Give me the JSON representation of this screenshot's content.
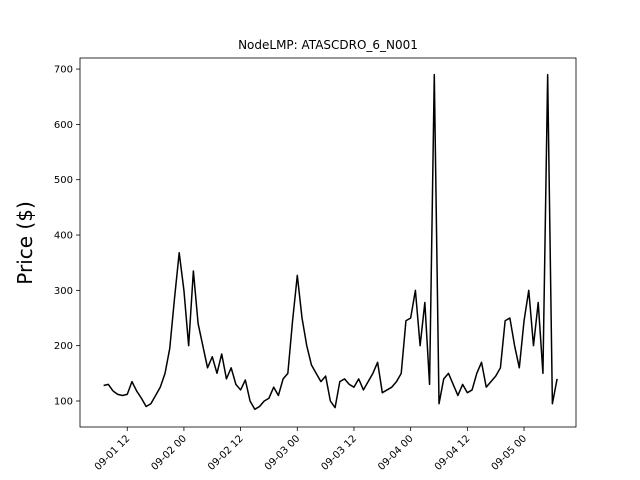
{
  "chart_data": {
    "type": "line",
    "title": "NodeLMP: ATASCDRO_6_N001",
    "y_label": "Price ($)",
    "x": [
      "09-01 07",
      "09-01 08",
      "09-01 09",
      "09-01 10",
      "09-01 11",
      "09-01 12",
      "09-01 13",
      "09-01 14",
      "09-01 15",
      "09-01 16",
      "09-01 17",
      "09-01 18",
      "09-01 19",
      "09-01 20",
      "09-01 21",
      "09-01 22",
      "09-01 23",
      "09-02 00",
      "09-02 01",
      "09-02 02",
      "09-02 03",
      "09-02 04",
      "09-02 05",
      "09-02 06",
      "09-02 07",
      "09-02 08",
      "09-02 09",
      "09-02 10",
      "09-02 11",
      "09-02 12",
      "09-02 13",
      "09-02 14",
      "09-02 15",
      "09-02 16",
      "09-02 17",
      "09-02 18",
      "09-02 19",
      "09-02 20",
      "09-02 21",
      "09-02 22",
      "09-02 23",
      "09-03 00",
      "09-03 01",
      "09-03 02",
      "09-03 03",
      "09-03 04",
      "09-03 05",
      "09-03 06",
      "09-03 07",
      "09-03 08",
      "09-03 09",
      "09-03 10",
      "09-03 11",
      "09-03 12",
      "09-03 13",
      "09-03 14",
      "09-03 15",
      "09-03 16",
      "09-03 17",
      "09-03 18",
      "09-03 19",
      "09-03 20",
      "09-03 21",
      "09-03 22",
      "09-03 23",
      "09-04 00",
      "09-04 01",
      "09-04 02",
      "09-04 03",
      "09-04 04",
      "09-04 05",
      "09-04 06",
      "09-04 07",
      "09-04 08",
      "09-04 09",
      "09-04 10",
      "09-04 11",
      "09-04 12",
      "09-04 13",
      "09-04 14",
      "09-04 15",
      "09-04 16",
      "09-04 17",
      "09-04 18",
      "09-04 19",
      "09-04 20",
      "09-04 21",
      "09-04 22",
      "09-04 23",
      "09-05 00",
      "09-05 01",
      "09-05 02",
      "09-05 03",
      "09-05 04",
      "09-05 05",
      "09-05 06",
      "09-05 07"
    ],
    "series": [
      {
        "color": "#000000",
        "values": [
          128,
          130,
          118,
          112,
          110,
          112,
          135,
          118,
          105,
          90,
          95,
          110,
          125,
          150,
          195,
          285,
          368,
          300,
          200,
          335,
          240,
          200,
          160,
          180,
          150,
          185,
          140,
          160,
          130,
          120,
          138,
          100,
          85,
          90,
          100,
          105,
          125,
          110,
          140,
          150,
          245,
          327,
          250,
          200,
          165,
          150,
          135,
          145,
          100,
          88,
          135,
          140,
          130,
          125,
          140,
          120,
          135,
          150,
          170,
          115,
          120,
          125,
          135,
          150,
          245,
          250,
          300,
          200,
          278,
          130,
          690,
          95,
          140,
          150,
          130,
          110,
          130,
          115,
          120,
          150,
          170,
          125,
          135,
          145,
          160,
          245,
          250,
          200,
          160,
          245,
          300,
          200,
          278,
          150,
          690,
          95,
          140
        ]
      }
    ],
    "xlim": [
      "09-01 02",
      "09-05 11"
    ],
    "xticks": [
      "09-01 12",
      "09-02 00",
      "09-02 12",
      "09-03 00",
      "09-03 12",
      "09-04 00",
      "09-04 12",
      "09-05 00"
    ],
    "ylim": [
      53,
      720
    ],
    "yticks": [
      100,
      200,
      300,
      400,
      500,
      600,
      700
    ]
  }
}
